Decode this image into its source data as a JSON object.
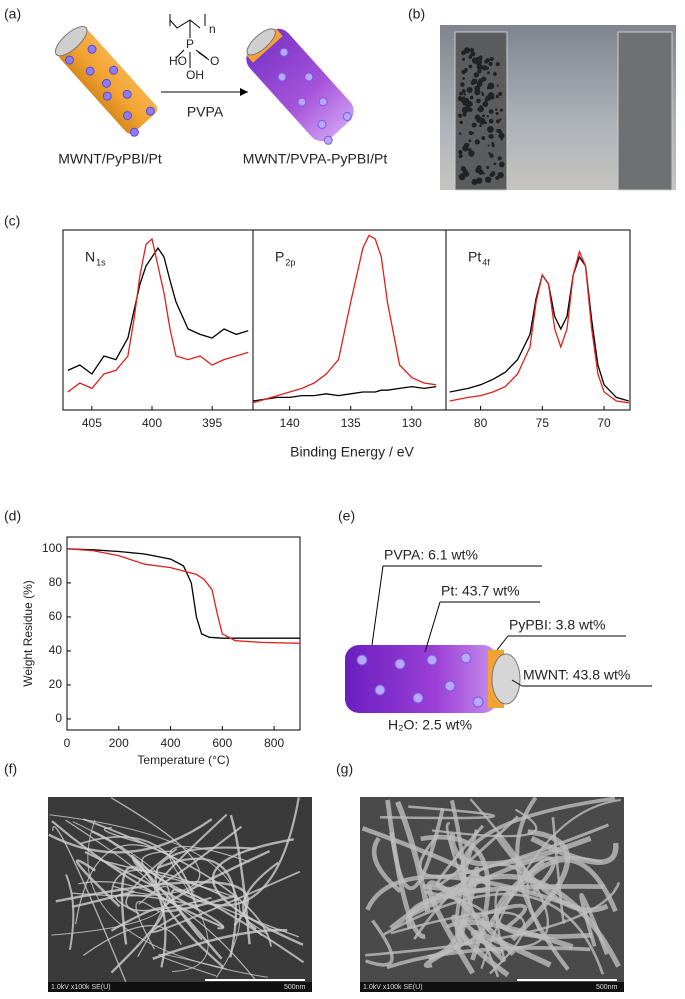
{
  "panels": {
    "a": {
      "label": "(a)",
      "reactant": "MWNT/PyPBI/Pt",
      "product": "MWNT/PVPA-PyPBI/Pt",
      "reagent": "PVPA",
      "structure": {
        "n": "n",
        "ho": "HO",
        "p": "P",
        "o": "O",
        "oh": "OH"
      }
    },
    "b": {
      "label": "(b)"
    },
    "c": {
      "label": "(c)",
      "xlabel": "Binding Energy / eV"
    },
    "d": {
      "label": "(d)"
    },
    "e": {
      "label": "(e)",
      "pvpa": "PVPA: 6.1 wt%",
      "pt": "Pt: 43.7 wt%",
      "pypbi": "PyPBI: 3.8 wt%",
      "mwnt": "MWNT: 43.8 wt%",
      "water": "H₂O: 2.5 wt%"
    },
    "f": {
      "label": "(f)",
      "info": "1.0kV x100k SE(U)",
      "scale": "500nm"
    },
    "g": {
      "label": "(g)",
      "info": "1.0kV x100k SE(U)",
      "scale": "500nm"
    }
  },
  "chart_data": [
    {
      "type": "line",
      "title": "N",
      "title_sub": "1s",
      "xlim": [
        407.4,
        391.6
      ],
      "xticks": [
        405,
        400,
        395
      ],
      "ylim": [
        0,
        1
      ],
      "series": [
        {
          "color": "#000000",
          "x": [
            407,
            406,
            405,
            404,
            403,
            402,
            401.5,
            401,
            400.5,
            400,
            399.5,
            399,
            398.5,
            398,
            397,
            396,
            395,
            394,
            393,
            392
          ],
          "values": [
            0.22,
            0.25,
            0.2,
            0.3,
            0.28,
            0.4,
            0.55,
            0.7,
            0.8,
            0.85,
            0.9,
            0.85,
            0.72,
            0.6,
            0.45,
            0.42,
            0.4,
            0.45,
            0.42,
            0.44
          ]
        },
        {
          "color": "#e0201b",
          "x": [
            407,
            406,
            405,
            404,
            403,
            402,
            401.5,
            401,
            400.5,
            400,
            399.5,
            399,
            398.5,
            398,
            397,
            396,
            395,
            394,
            393,
            392
          ],
          "values": [
            0.1,
            0.15,
            0.12,
            0.2,
            0.22,
            0.3,
            0.5,
            0.75,
            0.92,
            0.95,
            0.8,
            0.65,
            0.45,
            0.3,
            0.28,
            0.3,
            0.25,
            0.28,
            0.3,
            0.32
          ]
        }
      ]
    },
    {
      "type": "line",
      "title": "P",
      "title_sub": "2p",
      "xlim": [
        143.0,
        127.2
      ],
      "xticks": [
        140,
        135,
        130
      ],
      "ylim": [
        0,
        1
      ],
      "series": [
        {
          "color": "#000000",
          "x": [
            143,
            142,
            141,
            140,
            139,
            138,
            137,
            136,
            135,
            134,
            133.5,
            133,
            132.5,
            132,
            131,
            130,
            129,
            128
          ],
          "values": [
            0.05,
            0.06,
            0.07,
            0.07,
            0.08,
            0.08,
            0.09,
            0.08,
            0.09,
            0.1,
            0.1,
            0.1,
            0.11,
            0.11,
            0.12,
            0.13,
            0.12,
            0.13
          ]
        },
        {
          "color": "#e0201b",
          "x": [
            143,
            142,
            141,
            140,
            139,
            138,
            137,
            136,
            135,
            134,
            133.5,
            133,
            132.5,
            132,
            131,
            130,
            129,
            128
          ],
          "values": [
            0.04,
            0.06,
            0.08,
            0.1,
            0.12,
            0.15,
            0.2,
            0.28,
            0.6,
            0.9,
            0.97,
            0.95,
            0.85,
            0.6,
            0.25,
            0.18,
            0.15,
            0.14
          ]
        }
      ]
    },
    {
      "type": "line",
      "title": "Pt",
      "title_sub": "4f",
      "xlim": [
        82.8,
        67.9
      ],
      "xticks": [
        80,
        75,
        70
      ],
      "ylim": [
        0,
        1
      ],
      "series": [
        {
          "color": "#000000",
          "x": [
            82.5,
            81,
            80,
            79,
            78,
            77,
            76,
            75.5,
            75,
            74.5,
            74,
            73.5,
            73,
            72.5,
            72,
            71.5,
            71,
            70.5,
            70,
            69,
            68
          ],
          "values": [
            0.1,
            0.12,
            0.14,
            0.17,
            0.21,
            0.28,
            0.42,
            0.62,
            0.75,
            0.7,
            0.52,
            0.45,
            0.52,
            0.75,
            0.85,
            0.8,
            0.5,
            0.25,
            0.14,
            0.07,
            0.05
          ]
        },
        {
          "color": "#e0201b",
          "x": [
            82.5,
            81,
            80,
            79,
            78,
            77,
            76,
            75.5,
            75,
            74.5,
            74,
            73.5,
            73,
            72.5,
            72,
            71.5,
            71,
            70.5,
            70,
            69,
            68
          ],
          "values": [
            0.05,
            0.07,
            0.08,
            0.1,
            0.13,
            0.2,
            0.35,
            0.6,
            0.75,
            0.7,
            0.45,
            0.35,
            0.45,
            0.75,
            0.88,
            0.8,
            0.45,
            0.2,
            0.1,
            0.05,
            0.04
          ]
        }
      ]
    },
    {
      "type": "line",
      "xlabel": "Temperature (°C)",
      "ylabel": "Weight Residue (%)",
      "xlim": [
        0,
        900
      ],
      "xticks": [
        0,
        200,
        400,
        600,
        800
      ],
      "ylim": [
        -6.5,
        107
      ],
      "yticks": [
        0,
        20,
        40,
        60,
        80,
        100
      ],
      "series": [
        {
          "color": "#000000",
          "x": [
            0,
            100,
            200,
            300,
            400,
            450,
            480,
            500,
            520,
            550,
            600,
            700,
            800,
            900
          ],
          "values": [
            100,
            99.5,
            98.5,
            97,
            94,
            90,
            80,
            60,
            50,
            48,
            47.5,
            47.5,
            47.5,
            47.5
          ]
        },
        {
          "color": "#e0201b",
          "x": [
            0,
            100,
            200,
            300,
            400,
            450,
            500,
            530,
            560,
            580,
            600,
            650,
            750,
            900
          ],
          "values": [
            100,
            99,
            96,
            91,
            89,
            87,
            85,
            82,
            76,
            62,
            50,
            46,
            45,
            44.5
          ]
        }
      ]
    }
  ]
}
